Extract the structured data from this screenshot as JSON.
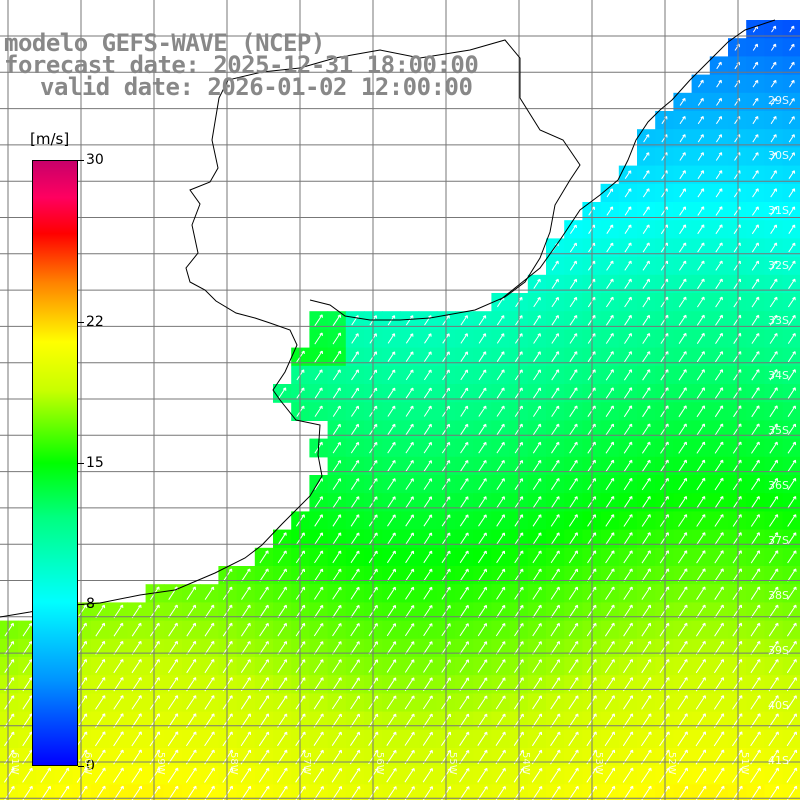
{
  "header": {
    "line1": "modelo GEFS-WAVE (NCEP)",
    "line2": "forecast date: 2025-12-31 18:00:00",
    "line3": "valid date: 2026-01-02 12:00:00"
  },
  "colorbar": {
    "units": "[m/s]",
    "ticks": [
      "30",
      "22",
      "15",
      "8",
      "0"
    ],
    "tick_values": [
      30,
      22,
      15,
      8,
      0
    ],
    "min": 0,
    "max": 30,
    "colors": [
      "#0000ff",
      "#0094ff",
      "#00ffff",
      "#00ff80",
      "#00ff00",
      "#c8ff00",
      "#ffff00",
      "#ff8000",
      "#ff0000",
      "#ff0060",
      "#c8006a"
    ]
  },
  "map": {
    "lon_labels": [
      "61W",
      "60W",
      "59W",
      "58W",
      "57W",
      "56W",
      "55W",
      "54W",
      "53W",
      "52W",
      "51W"
    ],
    "lat_labels": [
      "29S",
      "30S",
      "31S",
      "32S",
      "33S",
      "34S",
      "35S",
      "36S",
      "37S",
      "38S",
      "39S",
      "40S",
      "41S"
    ],
    "lat_range": [
      -41.3,
      -28.6
    ],
    "lon_range": [
      -61.4,
      -50.4
    ],
    "grid": true,
    "wind_direction": "southwest-to-northeast"
  }
}
